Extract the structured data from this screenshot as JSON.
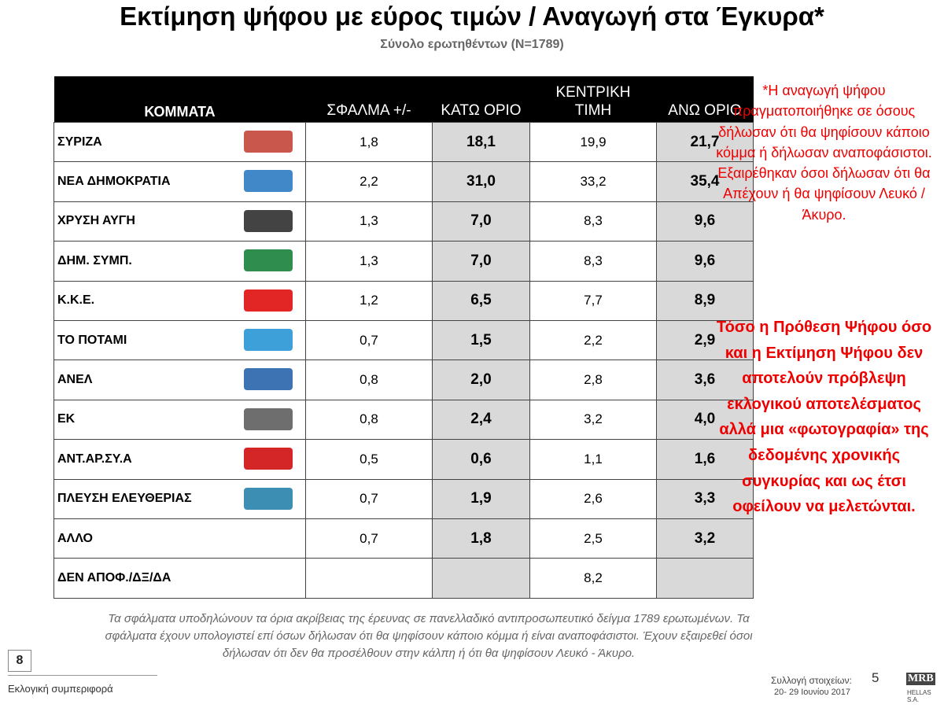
{
  "header": {
    "title": "Εκτίμηση ψήφου με εύρος τιμών / Αναγωγή στα Έγκυρα*",
    "subtitle": "Σύνολο ερωτηθέντων (N=1789)"
  },
  "table": {
    "columns": [
      "ΚΟΜΜΑΤΑ",
      "ΣΦΑΛΜΑ +/-",
      "ΚΑΤΩ ΟΡΙΟ",
      "ΚΕΝΤΡΙΚΗ ΤΙΜΗ",
      "ΑΝΩ ΟΡΙΟ"
    ],
    "rows": [
      [
        "ΣΥΡΙΖΑ",
        "1,8",
        "18,1",
        "19,9",
        "21,7"
      ],
      [
        "ΝΕΑ ΔΗΜΟΚΡΑΤΙΑ",
        "2,2",
        "31,0",
        "33,2",
        "35,4"
      ],
      [
        "ΧΡΥΣΗ ΑΥΓΗ",
        "1,3",
        "7,0",
        "8,3",
        "9,6"
      ],
      [
        "ΔΗΜ. ΣΥΜΠ.",
        "1,3",
        "7,0",
        "8,3",
        "9,6"
      ],
      [
        "Κ.Κ.Ε.",
        "1,2",
        "6,5",
        "7,7",
        "8,9"
      ],
      [
        "ΤΟ ΠΟΤΑΜΙ",
        "0,7",
        "1,5",
        "2,2",
        "2,9"
      ],
      [
        "ΑΝΕΛ",
        "0,8",
        "2,0",
        "2,8",
        "3,6"
      ],
      [
        "ΕΚ",
        "0,8",
        "2,4",
        "3,2",
        "4,0"
      ],
      [
        "ΑΝΤ.ΑΡ.ΣΥ.Α",
        "0,5",
        "0,6",
        "1,1",
        "1,6"
      ],
      [
        "ΠΛΕΥΣΗ ΕΛΕΥΘΕΡΙΑΣ",
        "0,7",
        "1,9",
        "2,6",
        "3,3"
      ],
      [
        "ΑΛΛΟ",
        "0,7",
        "1,8",
        "2,5",
        "3,2"
      ],
      [
        "ΔΕΝ ΑΠΟΦ./ΔΞ/ΔΑ",
        null,
        null,
        "8,2",
        null
      ]
    ]
  },
  "side_notes": {
    "note": "*Η αναγωγή ψήφου πραγματοποιήθηκε σε όσους δήλωσαν ότι θα ψηφίσουν κάποιο κόμμα ή δήλωσαν αναποφάσιστοι. Εξαιρέθηκαν όσοι δήλωσαν ότι θα Απέχουν ή θα ψηφίσουν Λευκό / Άκυρο.",
    "statement": "Τόσο η Πρόθεση Ψήφου όσο και η Εκτίμηση Ψήφου δεν αποτελούν πρόβλεψη εκλογικού αποτελέσματος αλλά μια «φωτογραφία» της δεδομένης χρονικής συγκυρίας και ως έτσι οφείλουν να μελετώνται."
  },
  "footer": {
    "note": "Τα σφάλματα υποδηλώνουν τα όρια ακρίβειας της έρευνας σε πανελλαδικό αντιπροσωπευτικό δείγμα 1789 ερωτωμένων. Τα σφάλματα έχουν υπολογιστεί επί όσων δήλωσαν ότι θα ψηφίσουν κάποιο κόμμα ή είναι αναποφάσιστοι. Έχουν εξαιρεθεί όσοι δήλωσαν ότι δεν θα προσέλθουν στην κάλπη ή ότι θα ψηφίσουν Λευκό - Άκυρο.",
    "page_number": "8",
    "section": "Εκλογική συμπεριφορά",
    "collection_label": "Συλλογή στοιχείων:",
    "collection_number": "5",
    "dates": "20- 29 Ιουνίου 2017",
    "logo": "MRB",
    "logo_subtitle": "HELLAS S.A."
  }
}
